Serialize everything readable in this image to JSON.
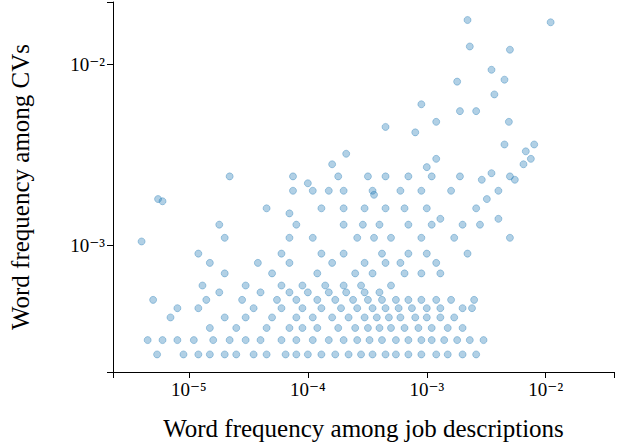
{
  "chart_data": {
    "type": "scatter",
    "xlabel": "Word frequency among job descriptions",
    "ylabel": "Word frequency among CVs",
    "color": "#1f77b4",
    "marker": "circle",
    "log": true,
    "grid": false,
    "xlim": [
      2.3e-06,
      0.0375
    ],
    "ylim": [
      0.0002,
      0.022
    ],
    "xticks": [
      {
        "value": 1e-05,
        "label": "10⁻⁵"
      },
      {
        "value": 0.0001,
        "label": "10⁻⁴"
      },
      {
        "value": 0.001,
        "label": "10⁻³"
      },
      {
        "value": 0.01,
        "label": "10⁻²"
      }
    ],
    "yticks": [
      {
        "value": 0.001,
        "label": "10⁻³"
      },
      {
        "value": 0.01,
        "label": "10⁻²"
      }
    ],
    "x": [
      5.4e-06,
      9e-06,
      1.2e-05,
      1.5e-05,
      2e-05,
      2.5e-05,
      3.5e-05,
      4.5e-05,
      6.5e-05,
      8e-05,
      0.0001,
      0.00013,
      0.00017,
      0.00022,
      0.00028,
      0.00035,
      0.00045,
      0.00055,
      0.0007,
      0.0009,
      0.0012,
      0.0015,
      0.002,
      0.0026,
      4.5e-06,
      6e-06,
      8e-06,
      1.1e-05,
      1.6e-05,
      2.2e-05,
      3e-05,
      4e-05,
      6e-05,
      8e-05,
      0.00011,
      0.00015,
      0.0002,
      0.00026,
      0.00033,
      0.00042,
      0.00055,
      0.0007,
      0.0009,
      0.0011,
      0.0014,
      0.0018,
      0.0023,
      0.003,
      1.5e-05,
      2.5e-05,
      4.5e-05,
      7e-05,
      9e-05,
      0.00012,
      0.00018,
      0.00025,
      0.00032,
      0.0004,
      0.0005,
      0.00065,
      0.00085,
      0.0011,
      0.0015,
      0.002,
      7e-06,
      2e-05,
      3e-05,
      5e-05,
      8e-05,
      0.00011,
      0.00016,
      0.00022,
      0.0003,
      0.00038,
      0.00048,
      0.0006,
      0.0008,
      0.001,
      0.0013,
      0.0017,
      1.2e-05,
      3.5e-05,
      6e-05,
      9e-05,
      0.00013,
      0.00019,
      0.00026,
      0.00035,
      0.00045,
      0.00058,
      0.00075,
      0.001,
      0.0013,
      0.002,
      8e-06,
      0.0024,
      5e-06,
      1.4e-05,
      2.8e-05,
      5.5e-05,
      8e-05,
      0.00012,
      0.00017,
      0.00024,
      0.00032,
      0.00042,
      0.00055,
      0.0007,
      0.0009,
      0.0012,
      0.0016,
      0.0025,
      1.8e-05,
      4e-05,
      7e-05,
      0.0001,
      0.00015,
      0.00021,
      0.0003,
      0.0004,
      1.3e-05,
      3e-05,
      6e-05,
      9e-05,
      0.00014,
      0.0002,
      0.00028,
      0.0005,
      2e-05,
      5e-05,
      0.00012,
      0.00025,
      0.00035,
      0.00065,
      0.0009,
      0.0013,
      1.5e-05,
      3.8e-05,
      7e-05,
      0.00016,
      0.0003,
      0.00045,
      0.0006,
      0.0012,
      1.2e-05,
      6e-05,
      0.00013,
      0.0002,
      0.00042,
      0.0007,
      0.001,
      0.0022,
      2e-05,
      7e-05,
      0.00011,
      0.00026,
      0.00036,
      0.0005,
      0.0009,
      0.0017,
      1.8e-05,
      8e-05,
      0.0002,
      0.00029,
      0.0004,
      0.0007,
      0.0011,
      0.002,
      4.5e-05,
      0.00013,
      0.0002,
      0.0003,
      0.00045,
      0.00065,
      0.001,
      0.0026,
      7.5e-05,
      0.00011,
      0.0002,
      0.00035,
      0.0006,
      0.0009,
      0.0016,
      0.004,
      7.5e-05,
      0.00018,
      0.00032,
      0.00045,
      0.0007,
      0.0011,
      0.0019,
      0.005,
      4e-06,
      5.5e-06,
      6e-06,
      2.2e-05,
      0.00016,
      0.00021,
      0.0012,
      0.0035,
      0.0001,
      0.00036,
      0.0029,
      0.0045,
      0.0055,
      0.0068,
      0.008,
      0.0009,
      0.0022,
      0.011,
      0.005,
      0.0023,
      0.0035,
      0.0045,
      0.0018,
      0.0037,
      0.0019,
      0.0026,
      0.0049,
      0.0065,
      0.00045,
      0.0012,
      0.0008,
      0.0075,
      0.004,
      0.0013,
      0.0028,
      0.0032,
      0.005,
      7e-05,
      0.00015,
      0.001
    ],
    "values": [
      0.00025,
      0.00025,
      0.00025,
      0.00025,
      0.00025,
      0.00025,
      0.00025,
      0.00025,
      0.00025,
      0.00025,
      0.00025,
      0.00025,
      0.00025,
      0.00025,
      0.00025,
      0.00025,
      0.00025,
      0.00025,
      0.00025,
      0.00025,
      0.00025,
      0.00025,
      0.00025,
      0.00025,
      0.0003,
      0.0003,
      0.0003,
      0.0003,
      0.0003,
      0.0003,
      0.0003,
      0.0003,
      0.0003,
      0.0003,
      0.0003,
      0.0003,
      0.0003,
      0.0003,
      0.0003,
      0.0003,
      0.0003,
      0.0003,
      0.0003,
      0.0003,
      0.0003,
      0.0003,
      0.0003,
      0.0003,
      0.00035,
      0.00035,
      0.00035,
      0.00035,
      0.00035,
      0.00035,
      0.00035,
      0.00035,
      0.00035,
      0.00035,
      0.00035,
      0.00035,
      0.00035,
      0.00035,
      0.00035,
      0.00035,
      0.0004,
      0.0004,
      0.0004,
      0.0004,
      0.0004,
      0.0004,
      0.0004,
      0.0004,
      0.0004,
      0.0004,
      0.0004,
      0.0004,
      0.0004,
      0.0004,
      0.0004,
      0.0004,
      0.00045,
      0.00045,
      0.00045,
      0.00045,
      0.00045,
      0.00045,
      0.00045,
      0.00045,
      0.00045,
      0.00045,
      0.00045,
      0.00045,
      0.00045,
      0.00045,
      0.00045,
      0.00045,
      0.0005,
      0.0005,
      0.0005,
      0.0005,
      0.0005,
      0.0005,
      0.0005,
      0.0005,
      0.0005,
      0.0005,
      0.0005,
      0.0005,
      0.0005,
      0.0005,
      0.0005,
      0.0005,
      0.00055,
      0.00055,
      0.00055,
      0.00055,
      0.00055,
      0.00055,
      0.00055,
      0.00055,
      0.0006,
      0.0006,
      0.0006,
      0.0006,
      0.0006,
      0.0006,
      0.0006,
      0.0006,
      0.0007,
      0.0007,
      0.0007,
      0.0007,
      0.0007,
      0.0007,
      0.0007,
      0.0007,
      0.0008,
      0.0008,
      0.0008,
      0.0008,
      0.0008,
      0.0008,
      0.0008,
      0.0008,
      0.0009,
      0.0009,
      0.0009,
      0.0009,
      0.0009,
      0.0009,
      0.0009,
      0.0009,
      0.0011,
      0.0011,
      0.0011,
      0.0011,
      0.0011,
      0.0011,
      0.0011,
      0.0011,
      0.0013,
      0.0013,
      0.0013,
      0.0013,
      0.0013,
      0.0013,
      0.0013,
      0.0013,
      0.0016,
      0.0016,
      0.0016,
      0.0016,
      0.0016,
      0.0016,
      0.0016,
      0.0016,
      0.002,
      0.002,
      0.002,
      0.002,
      0.002,
      0.002,
      0.002,
      0.002,
      0.0024,
      0.0024,
      0.0024,
      0.0024,
      0.0024,
      0.0024,
      0.0024,
      0.0024,
      0.00105,
      0.0018,
      0.00175,
      0.0024,
      0.0028,
      0.0032,
      0.003,
      0.0025,
      0.0022,
      0.0019,
      0.0023,
      0.0036,
      0.0023,
      0.0033,
      0.0036,
      0.006,
      0.0175,
      0.017,
      0.012,
      0.0125,
      0.0093,
      0.0082,
      0.008,
      0.0068,
      0.0055,
      0.0055,
      0.0048,
      0.0028,
      0.0045,
      0.0048,
      0.0042,
      0.003,
      0.0014,
      0.0014,
      0.0013,
      0.0018,
      0.0011,
      0.0015,
      0.002,
      0.0027
    ]
  }
}
